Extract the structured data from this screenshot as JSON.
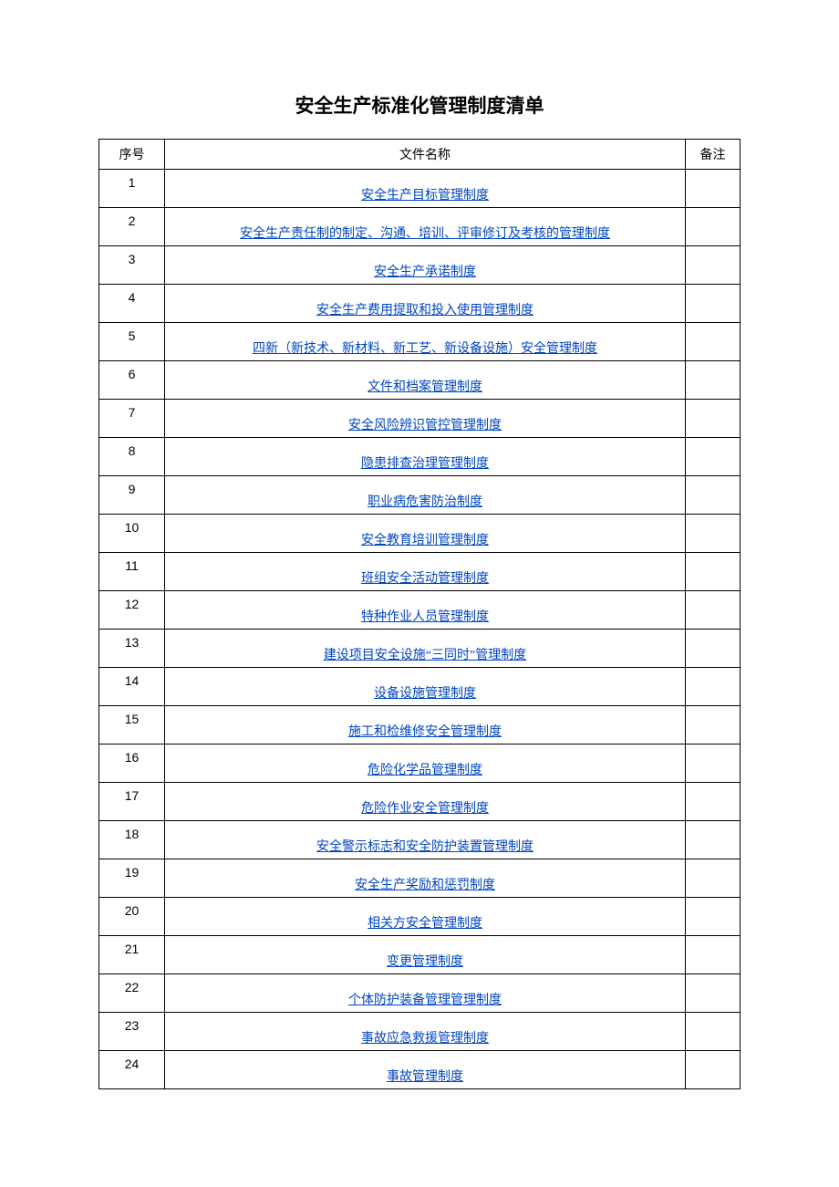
{
  "document": {
    "title": "安全生产标准化管理制度清单",
    "columns": {
      "seq": "序号",
      "name": "文件名称",
      "note": "备注"
    },
    "link_color": "#0046c2",
    "border_color": "#000000",
    "rows": [
      {
        "seq": "1",
        "name": "安全生产目标管理制度",
        "note": ""
      },
      {
        "seq": "2",
        "name": "安全生产责任制的制定、沟通、培训、评审修订及考核的管理制度",
        "note": ""
      },
      {
        "seq": "3",
        "name": "安全生产承诺制度",
        "note": ""
      },
      {
        "seq": "4",
        "name": "安全生产费用提取和投入使用管理制度",
        "note": ""
      },
      {
        "seq": "5",
        "name": "四新（新技术、新材料、新工艺、新设备设施）安全管理制度",
        "note": ""
      },
      {
        "seq": "6",
        "name": "文件和档案管理制度",
        "note": ""
      },
      {
        "seq": "7",
        "name": "安全风险辨识管控管理制度",
        "note": ""
      },
      {
        "seq": "8",
        "name": "隐患排查治理管理制度",
        "note": ""
      },
      {
        "seq": "9",
        "name": "职业病危害防治制度",
        "note": ""
      },
      {
        "seq": "10",
        "name": "安全教育培训管理制度",
        "note": ""
      },
      {
        "seq": "11",
        "name": "班组安全活动管理制度",
        "note": ""
      },
      {
        "seq": "12",
        "name": "特种作业人员管理制度",
        "note": ""
      },
      {
        "seq": "13",
        "name": "建设项目安全设施“三同时”管理制度",
        "note": ""
      },
      {
        "seq": "14",
        "name": "设备设施管理制度",
        "note": ""
      },
      {
        "seq": "15",
        "name": "施工和检维修安全管理制度",
        "note": ""
      },
      {
        "seq": "16",
        "name": "危险化学品管理制度",
        "note": ""
      },
      {
        "seq": "17",
        "name": "危险作业安全管理制度",
        "note": ""
      },
      {
        "seq": "18",
        "name": "安全警示标志和安全防护装置管理制度",
        "note": ""
      },
      {
        "seq": "19",
        "name": "安全生产奖励和惩罚制度",
        "note": ""
      },
      {
        "seq": "20",
        "name": "相关方安全管理制度",
        "note": ""
      },
      {
        "seq": "21",
        "name": "变更管理制度",
        "note": ""
      },
      {
        "seq": "22",
        "name": "个体防护装备管理管理制度",
        "note": ""
      },
      {
        "seq": "23",
        "name": "事故应急救援管理制度",
        "note": ""
      },
      {
        "seq": "24",
        "name": "事故管理制度",
        "note": ""
      }
    ]
  }
}
